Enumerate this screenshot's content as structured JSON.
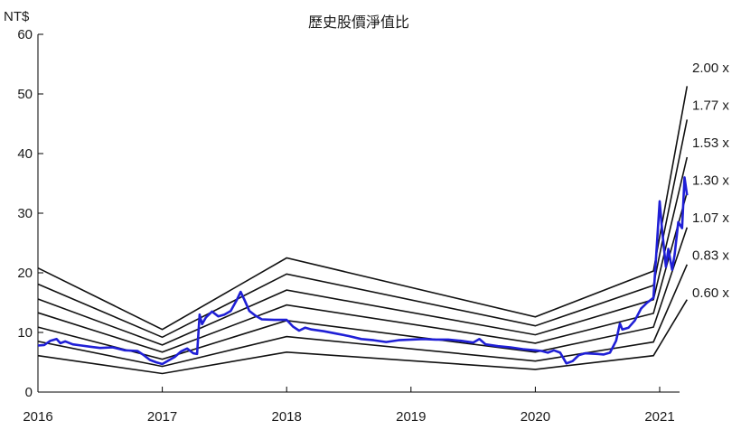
{
  "chart_data": {
    "type": "line",
    "title": "歷史股價淨值比",
    "ylabel": "NT$",
    "xlabel": "",
    "ylim": [
      0,
      60
    ],
    "xlim": [
      2016,
      2021.22
    ],
    "yticks": [
      0,
      10,
      20,
      30,
      40,
      50,
      60
    ],
    "xticks": [
      2016,
      2017,
      2018,
      2019,
      2020,
      2021
    ],
    "grid": false,
    "colors": {
      "price": "#1f1fd6",
      "band": "#111111"
    },
    "bands": [
      {
        "label": "2.00 x",
        "points": [
          [
            2016,
            20.8
          ],
          [
            2017,
            10.5
          ],
          [
            2018,
            22.5
          ],
          [
            2020,
            12.6
          ],
          [
            2020.95,
            20.3
          ],
          [
            2021.22,
            51.3
          ]
        ]
      },
      {
        "label": "1.77 x",
        "points": [
          [
            2016,
            18.1
          ],
          [
            2017,
            9.2
          ],
          [
            2018,
            19.8
          ],
          [
            2020,
            11.1
          ],
          [
            2020.95,
            17.9
          ],
          [
            2021.22,
            45.7
          ]
        ]
      },
      {
        "label": "1.53 x",
        "points": [
          [
            2016,
            15.6
          ],
          [
            2017,
            7.9
          ],
          [
            2018,
            17.1
          ],
          [
            2020,
            9.6
          ],
          [
            2020.95,
            15.5
          ],
          [
            2021.22,
            39.4
          ]
        ]
      },
      {
        "label": "1.30 x",
        "points": [
          [
            2016,
            13.3
          ],
          [
            2017,
            6.7
          ],
          [
            2018,
            14.6
          ],
          [
            2020,
            8.2
          ],
          [
            2020.95,
            13.2
          ],
          [
            2021.22,
            33.5
          ]
        ]
      },
      {
        "label": "1.07 x",
        "points": [
          [
            2016,
            10.9
          ],
          [
            2017,
            5.5
          ],
          [
            2018,
            12.0
          ],
          [
            2020,
            6.7
          ],
          [
            2020.95,
            10.9
          ],
          [
            2021.22,
            27.6
          ]
        ]
      },
      {
        "label": "0.83 x",
        "points": [
          [
            2016,
            8.5
          ],
          [
            2017,
            4.3
          ],
          [
            2018,
            9.3
          ],
          [
            2020,
            5.2
          ],
          [
            2020.95,
            8.4
          ],
          [
            2021.22,
            21.4
          ]
        ]
      },
      {
        "label": "0.60 x",
        "points": [
          [
            2016,
            6.1
          ],
          [
            2017,
            3.1
          ],
          [
            2018,
            6.7
          ],
          [
            2020,
            3.8
          ],
          [
            2020.95,
            6.1
          ],
          [
            2021.22,
            15.5
          ]
        ]
      }
    ],
    "series": [
      {
        "x": [
          2016.0,
          2016.05,
          2016.1,
          2016.15,
          2016.18,
          2016.22,
          2016.28,
          2016.35,
          2016.42,
          2016.5,
          2016.6,
          2016.7,
          2016.8,
          2016.85,
          2016.9,
          2016.95,
          2017.0,
          2017.05,
          2017.1,
          2017.15,
          2017.2,
          2017.25,
          2017.28,
          2017.3,
          2017.32,
          2017.35,
          2017.4,
          2017.45,
          2017.5,
          2017.55,
          2017.6,
          2017.63,
          2017.66,
          2017.7,
          2017.75,
          2017.8,
          2017.9,
          2018.0,
          2018.05,
          2018.1,
          2018.15,
          2018.2,
          2018.3,
          2018.4,
          2018.5,
          2018.6,
          2018.7,
          2018.8,
          2018.9,
          2019.0,
          2019.1,
          2019.2,
          2019.3,
          2019.4,
          2019.5,
          2019.55,
          2019.6,
          2019.7,
          2019.8,
          2019.9,
          2020.0,
          2020.05,
          2020.1,
          2020.15,
          2020.2,
          2020.25,
          2020.3,
          2020.35,
          2020.4,
          2020.5,
          2020.55,
          2020.6,
          2020.65,
          2020.68,
          2020.7,
          2020.75,
          2020.8,
          2020.85,
          2020.9,
          2020.95,
          2021.0,
          2021.02,
          2021.05,
          2021.07,
          2021.1,
          2021.12,
          2021.15,
          2021.18,
          2021.2,
          2021.22
        ],
        "values": [
          7.8,
          7.9,
          8.6,
          8.9,
          8.2,
          8.5,
          8.0,
          7.8,
          7.6,
          7.4,
          7.5,
          7.0,
          6.9,
          6.2,
          5.4,
          5.0,
          4.7,
          5.3,
          5.9,
          6.8,
          7.3,
          6.5,
          6.4,
          13.0,
          11.4,
          12.5,
          13.5,
          12.7,
          13.0,
          13.6,
          15.5,
          16.8,
          15.5,
          13.6,
          12.8,
          12.2,
          12.1,
          12.1,
          11.0,
          10.3,
          10.8,
          10.5,
          10.2,
          9.8,
          9.4,
          8.9,
          8.7,
          8.4,
          8.7,
          8.8,
          8.9,
          8.8,
          8.8,
          8.6,
          8.3,
          8.9,
          8.0,
          7.7,
          7.5,
          7.2,
          7.0,
          6.9,
          6.6,
          7.0,
          6.6,
          4.8,
          5.2,
          6.2,
          6.5,
          6.4,
          6.3,
          6.6,
          8.6,
          11.5,
          10.5,
          10.8,
          12.0,
          14.0,
          15.0,
          15.8,
          32.0,
          27.0,
          21.0,
          24.0,
          20.5,
          23.0,
          28.5,
          27.5,
          36.0,
          33.0
        ]
      }
    ]
  }
}
